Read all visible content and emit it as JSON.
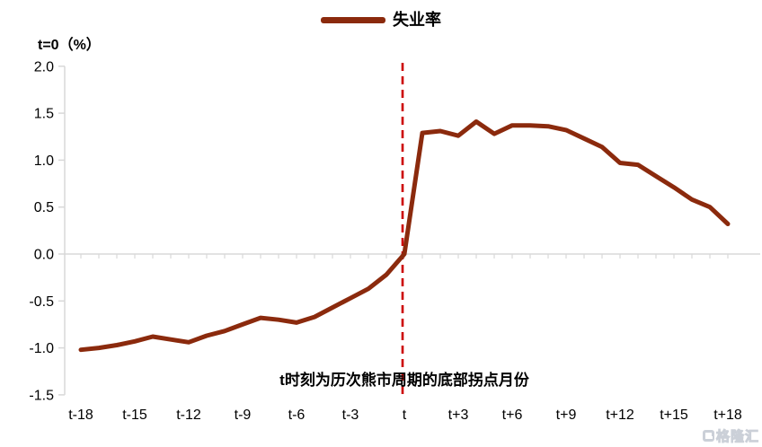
{
  "chart_data": {
    "type": "line",
    "title": "",
    "ylabel": "t=0（%）",
    "legend": "失业率",
    "annotation": "t时刻为历次熊市周期的底部拐点月份",
    "ylim": [
      -1.5,
      2.0
    ],
    "y_tick_step": 0.5,
    "y_ticks": [
      2.0,
      1.5,
      1.0,
      0.5,
      0.0,
      -0.5,
      -1.0,
      -1.5
    ],
    "x_tick_labels": [
      "t-18",
      "t-15",
      "t-12",
      "t-9",
      "t-6",
      "t-3",
      "t",
      "t+3",
      "t+6",
      "t+9",
      "t+12",
      "t+15",
      "t+18"
    ],
    "x_tick_months": [
      -18,
      -15,
      -12,
      -9,
      -6,
      -3,
      0,
      3,
      6,
      9,
      12,
      15,
      18
    ],
    "x_start": -18,
    "x_end": 18,
    "grid": "zero-line-only",
    "legend_position": "top-center",
    "marker_line": {
      "month": 0,
      "style": "dashed",
      "color": "#CC0000"
    },
    "series": [
      {
        "name": "失业率",
        "color": "#8B2A0D",
        "values": [
          -1.02,
          -1.0,
          -0.97,
          -0.93,
          -0.88,
          -0.91,
          -0.94,
          -0.87,
          -0.82,
          -0.75,
          -0.68,
          -0.7,
          -0.73,
          -0.67,
          -0.57,
          -0.47,
          -0.37,
          -0.22,
          0.0,
          1.29,
          1.31,
          1.26,
          1.41,
          1.28,
          1.37,
          1.37,
          1.36,
          1.32,
          1.23,
          1.14,
          0.97,
          0.95,
          0.83,
          0.71,
          0.58,
          0.5,
          0.32
        ]
      }
    ],
    "axis_color": "#D8D8D8",
    "text_color": "#000000"
  },
  "watermark": {
    "text": "格隆汇"
  }
}
